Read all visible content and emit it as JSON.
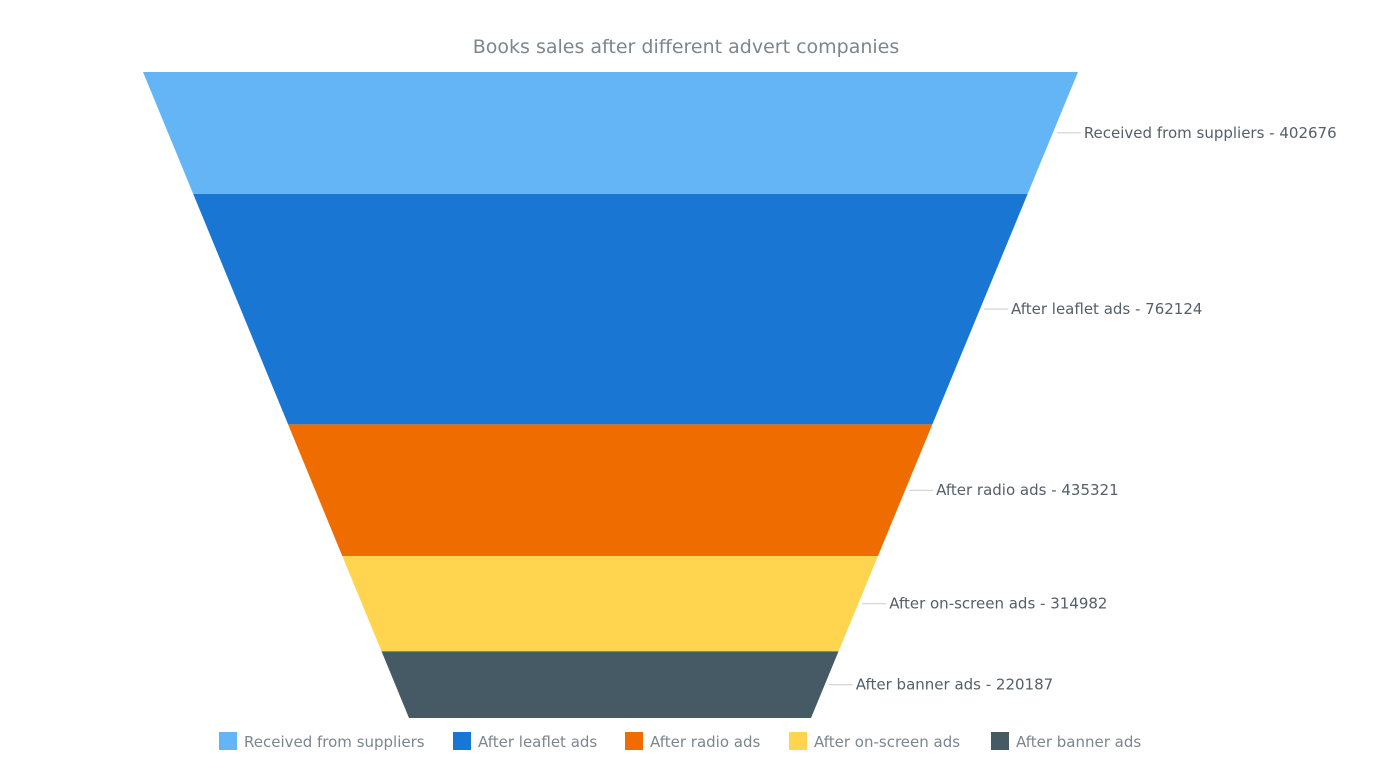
{
  "chart_data": {
    "type": "funnel",
    "title": "Books sales after different advert companies",
    "categories": [
      "Received from suppliers",
      "After leaflet ads",
      "After radio ads",
      "After on-screen ads",
      "After banner ads"
    ],
    "values": [
      402676,
      762124,
      435321,
      314982,
      220187
    ],
    "colors": [
      "#64b5f6",
      "#1976d2",
      "#ef6c00",
      "#ffd54f",
      "#455a64"
    ],
    "point_labels": [
      "Received from suppliers - 402676",
      "After leaflet ads - 762124",
      "After radio ads - 435321",
      "After on-screen ads - 314982",
      "After banner ads - 220187"
    ],
    "legend": {
      "position": "bottom",
      "items": [
        {
          "label": "Received from suppliers",
          "color": "#64b5f6"
        },
        {
          "label": "After leaflet ads",
          "color": "#1976d2"
        },
        {
          "label": "After radio ads",
          "color": "#ef6c00"
        },
        {
          "label": "After on-screen ads",
          "color": "#ffd54f"
        },
        {
          "label": "After banner ads",
          "color": "#455a64"
        }
      ]
    }
  }
}
